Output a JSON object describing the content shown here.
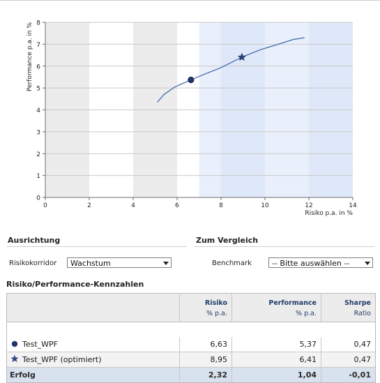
{
  "chart_data": {
    "type": "line",
    "ylabel": "Performance p.a. in %",
    "xlabel": "Risiko p.a. in %",
    "xlim": [
      0,
      14
    ],
    "ylim": [
      0,
      8
    ],
    "x_ticks": [
      "0",
      "2",
      "4",
      "6",
      "8",
      "10",
      "12",
      "14"
    ],
    "y_ticks": [
      "0",
      "1",
      "2",
      "3",
      "4",
      "5",
      "6",
      "7",
      "8"
    ],
    "grid": true,
    "background_bands": [
      {
        "x0": 0,
        "x1": 2,
        "color": "#ececec"
      },
      {
        "x0": 4,
        "x1": 6,
        "color": "#ececec"
      },
      {
        "x0": 7,
        "x1": 8,
        "color": "#e9f0fc"
      },
      {
        "x0": 8,
        "x1": 10,
        "color": "#dfe8f8"
      },
      {
        "x0": 10,
        "x1": 12,
        "color": "#e9f0fc"
      },
      {
        "x0": 12,
        "x1": 14,
        "color": "#dfe8f8"
      }
    ],
    "series": [
      {
        "type": "line",
        "color": "#3a63a6",
        "points": [
          [
            5.1,
            4.35
          ],
          [
            5.4,
            4.7
          ],
          [
            5.9,
            5.05
          ],
          [
            6.63,
            5.37
          ],
          [
            7.3,
            5.65
          ],
          [
            8.0,
            5.93
          ],
          [
            8.95,
            6.41
          ],
          [
            9.8,
            6.75
          ],
          [
            10.6,
            7.0
          ],
          [
            11.3,
            7.22
          ],
          [
            11.8,
            7.3
          ]
        ]
      }
    ],
    "markers": [
      {
        "x": 6.63,
        "y": 5.37,
        "shape": "circle",
        "color": "#23356b"
      },
      {
        "x": 8.95,
        "y": 6.41,
        "shape": "star",
        "color": "#2c4780"
      }
    ]
  },
  "ausrichtung": {
    "title": "Ausrichtung",
    "label": "Risikokorridor",
    "value": "Wachstum"
  },
  "vergleich": {
    "title": "Zum Vergleich",
    "label": "Benchmark",
    "value": "-- Bitte auswählen --"
  },
  "table": {
    "title": "Risiko/Performance-Kennzahlen",
    "headers": [
      {
        "label": "Risiko",
        "sub": "% p.a."
      },
      {
        "label": "Performance",
        "sub": "% p.a."
      },
      {
        "label": "Sharpe",
        "sub": "Ratio"
      }
    ],
    "rows": [
      {
        "name": "Test_WPF",
        "marker": "circle",
        "risk": "6,63",
        "performance": "5,37",
        "sharpe": "0,47"
      },
      {
        "name": "Test_WPF (optimiert)",
        "marker": "star",
        "risk": "8,95",
        "performance": "6,41",
        "sharpe": "0,47"
      }
    ],
    "summary": {
      "name": "Erfolg",
      "risk": "2,32",
      "performance": "1,04",
      "sharpe": "-0,01"
    }
  }
}
